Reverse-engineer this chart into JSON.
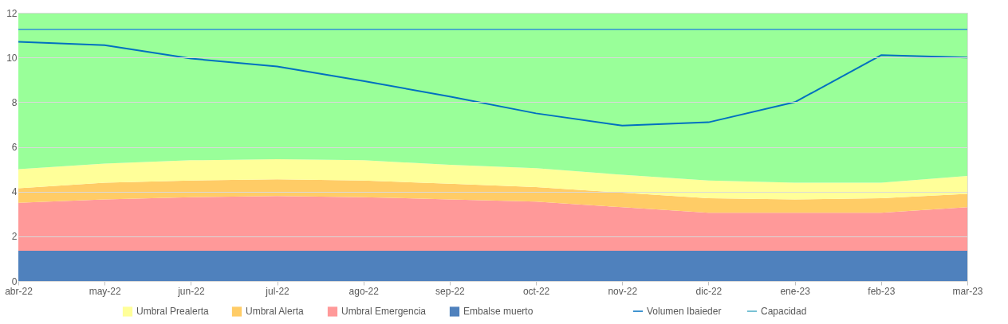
{
  "chart_data": {
    "type": "area",
    "stacked": true,
    "categories": [
      "abr-22",
      "may-22",
      "jun-22",
      "jul-22",
      "ago-22",
      "sep-22",
      "oct-22",
      "nov-22",
      "dic-22",
      "ene-23",
      "feb-23",
      "mar-23"
    ],
    "series": [
      {
        "name": "Embalse muerto",
        "color": "#4f81bd",
        "values": [
          1.35,
          1.35,
          1.35,
          1.35,
          1.35,
          1.35,
          1.35,
          1.35,
          1.35,
          1.35,
          1.35,
          1.35
        ]
      },
      {
        "name": "Umbral Emergencia",
        "color": "#ff9999",
        "values": [
          2.15,
          2.3,
          2.4,
          2.45,
          2.4,
          2.3,
          2.2,
          1.95,
          1.7,
          1.7,
          1.7,
          1.95
        ]
      },
      {
        "name": "Umbral Alerta",
        "color": "#ffcc66",
        "values": [
          0.65,
          0.75,
          0.75,
          0.75,
          0.75,
          0.7,
          0.65,
          0.65,
          0.65,
          0.6,
          0.65,
          0.6
        ]
      },
      {
        "name": "Umbral Prealerta",
        "color": "#ffff99",
        "values": [
          0.85,
          0.85,
          0.9,
          0.9,
          0.9,
          0.85,
          0.85,
          0.8,
          0.8,
          0.75,
          0.7,
          0.8
        ]
      },
      {
        "color": "#99ff99",
        "values": [
          7.0,
          6.75,
          6.6,
          6.55,
          6.6,
          6.8,
          6.95,
          7.25,
          7.5,
          7.6,
          7.6,
          7.3
        ]
      },
      {
        "name": "Volumen Ibaieder",
        "type": "line",
        "color": "#0070c0",
        "values": [
          10.7,
          10.55,
          9.95,
          9.6,
          8.95,
          8.25,
          7.5,
          6.95,
          7.1,
          8.0,
          10.1,
          10.0
        ]
      },
      {
        "name": "Capacidad",
        "type": "line",
        "color": "#4bacc6",
        "values": [
          11.25,
          11.25,
          11.25,
          11.25,
          11.25,
          11.25,
          11.25,
          11.25,
          11.25,
          11.25,
          11.25,
          11.25
        ]
      }
    ],
    "ylim": [
      0,
      12
    ],
    "yticks": [
      0,
      2,
      4,
      6,
      8,
      10,
      12
    ],
    "grid": "y",
    "legend": "bottom"
  }
}
